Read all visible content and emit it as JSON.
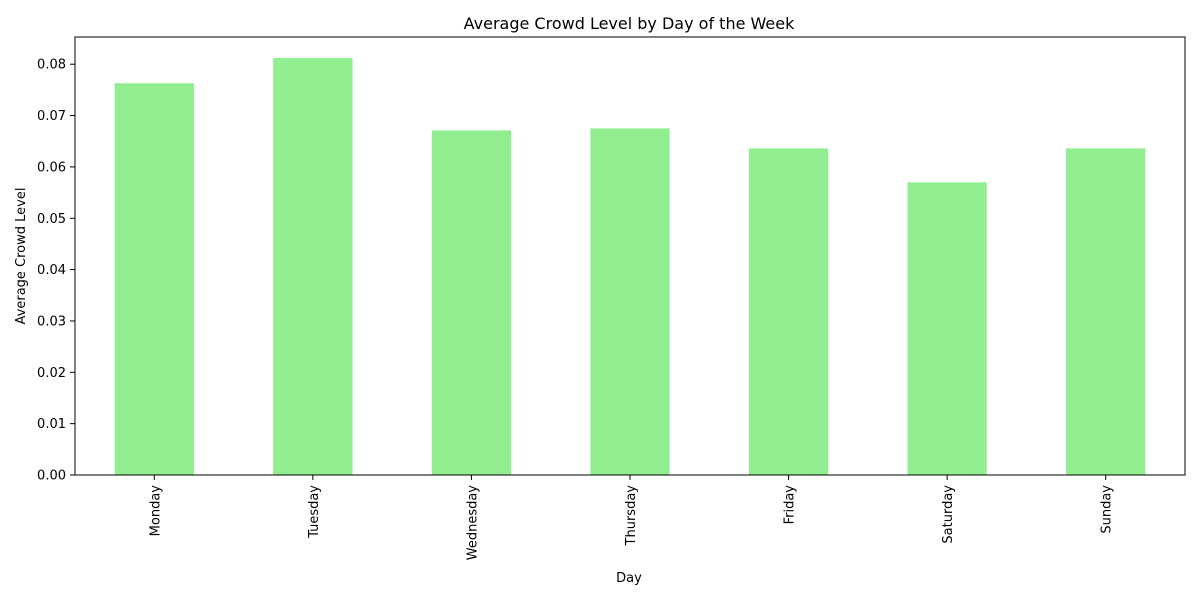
{
  "chart_data": {
    "type": "bar",
    "title": "Average Crowd Level by Day of the Week",
    "xlabel": "Day",
    "ylabel": "Average Crowd Level",
    "categories": [
      "Monday",
      "Tuesday",
      "Wednesday",
      "Thursday",
      "Friday",
      "Saturday",
      "Sunday"
    ],
    "values": [
      0.0763,
      0.0812,
      0.0671,
      0.0675,
      0.0636,
      0.057,
      0.0636
    ],
    "ylim": [
      0,
      0.0853
    ],
    "yticks": [
      "0.00",
      "0.01",
      "0.02",
      "0.03",
      "0.04",
      "0.05",
      "0.06",
      "0.07",
      "0.08"
    ],
    "bar_color": "#90ee90",
    "grid": false,
    "legend": "none"
  }
}
